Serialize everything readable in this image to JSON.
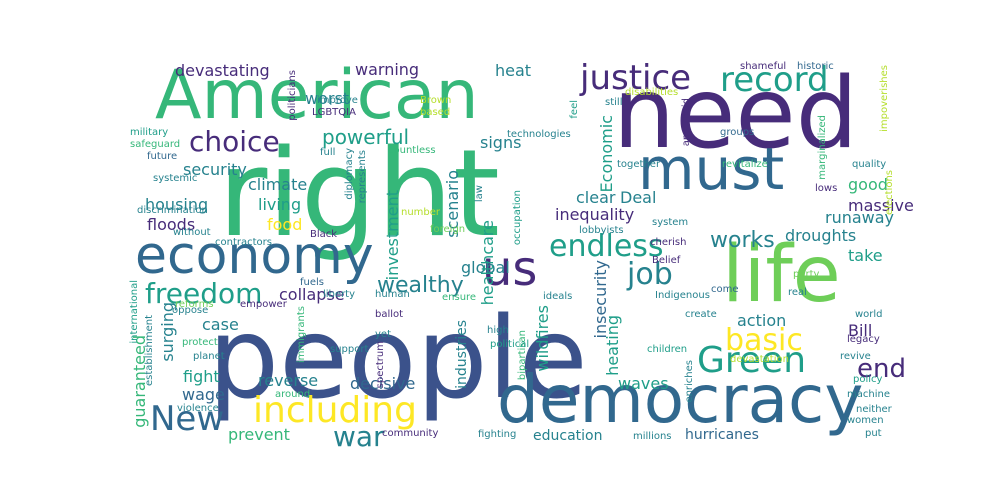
{
  "words": [
    "people",
    "right",
    "American",
    "need",
    "life",
    "democracy",
    "must",
    "economy",
    "us",
    "including",
    "Green",
    "justice",
    "record",
    "New",
    "endless",
    "choice",
    "freedom",
    "job",
    "basic",
    "war",
    "wealthy",
    "works",
    "end",
    "powerful",
    "devastating",
    "warning",
    "worst",
    "heat",
    "security",
    "climate",
    "living",
    "food",
    "housing",
    "floods",
    "collapse",
    "investment",
    "scenario",
    "Economic",
    "inequality",
    "clear",
    "global",
    "healthcare",
    "signs",
    "runaway",
    "good",
    "massive",
    "droughts",
    "take",
    "Bill",
    "action",
    "surging",
    "reverse",
    "decisive",
    "case",
    "fight",
    "wage",
    "prevent",
    "education",
    "waves",
    "hurricanes",
    "insecurity",
    "heating",
    "industries",
    "wildfires",
    "guaranteed",
    "impoverishes",
    "shameful",
    "historic",
    "politicians",
    "improve",
    "LGBTQIA",
    "Brown",
    "based",
    "feel",
    "still",
    "disabilities",
    "apartheid",
    "marginalized",
    "technologies",
    "groups",
    "military",
    "safeguard",
    "future",
    "systemic",
    "discrimination",
    "without",
    "contractors",
    "full",
    "diplomacy",
    "represents",
    "countless",
    "together",
    "Deal",
    "revitalize",
    "quality",
    "number",
    "law",
    "occupation",
    "lobbyists",
    "system",
    "lows",
    "elections",
    "Black",
    "foreign",
    "cherish",
    "fuels",
    "liberty",
    "human",
    "empower",
    "reforms",
    "international",
    "ideals",
    "Belief",
    "come",
    "party",
    "real",
    "ballot",
    "ensure",
    "Indigenous",
    "oppose",
    "establishment",
    "immigrants",
    "yet",
    "high",
    "bipartisan",
    "spectrum",
    "political",
    "create",
    "world",
    "protect",
    "planet",
    "legacy",
    "revive",
    "support",
    "children",
    "devastation",
    "policy",
    "machine",
    "neither",
    "enriches",
    "violence",
    "around",
    "women",
    "community",
    "fighting",
    "millions",
    "put"
  ],
  "colors": {
    "dark_purple": "#472c7a",
    "indigo": "#3b528b",
    "blue": "#31688e",
    "teal": "#26828e",
    "green_teal": "#1f9e89",
    "green": "#35b779",
    "light_green": "#6ece58",
    "lime": "#b5de2b",
    "yellow": "#fde725"
  }
}
